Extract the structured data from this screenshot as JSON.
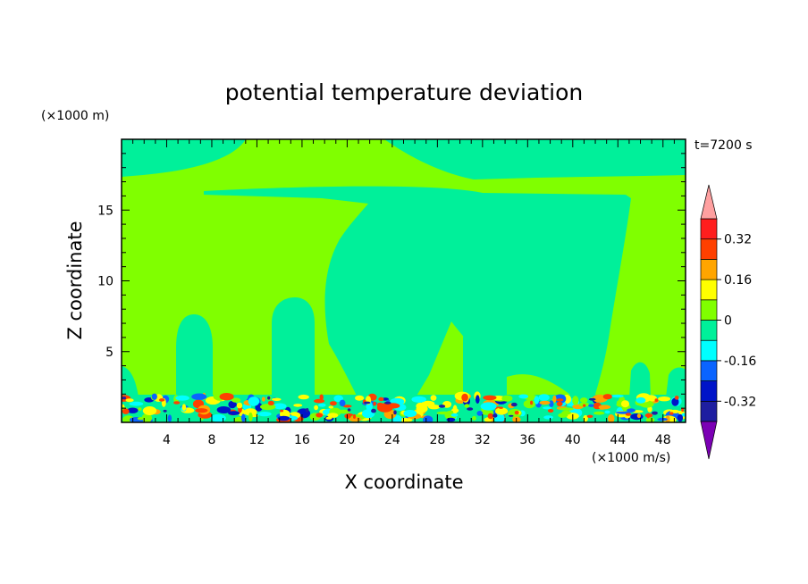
{
  "chart_data": {
    "type": "heatmap",
    "title": "potential temperature deviation",
    "xlabel": "X coordinate",
    "ylabel": "Z coordinate",
    "x_unit": "(×1000 m/s)",
    "y_unit": "(×1000 m)",
    "time_label": "t=7200 s",
    "xlim": [
      0,
      50
    ],
    "ylim": [
      0,
      20
    ],
    "x_ticks": [
      4,
      8,
      12,
      16,
      20,
      24,
      28,
      32,
      36,
      40,
      44,
      48
    ],
    "y_ticks": [
      5,
      10,
      15
    ],
    "colorbar": {
      "levels": [
        -0.4,
        -0.32,
        -0.24,
        -0.16,
        -0.08,
        0,
        0.08,
        0.16,
        0.24,
        0.32,
        0.4
      ],
      "colors": [
        "#7b00b4",
        "#1e1ea0",
        "#0014c8",
        "#0a64ff",
        "#00ffff",
        "#00f09a",
        "#80ff00",
        "#ffff00",
        "#ffa500",
        "#ff4000",
        "#ff1e1e",
        "#ffa0a0"
      ],
      "labels": [
        "0.32",
        "0.16",
        "0",
        "-0.16",
        "-0.32"
      ],
      "label_values": [
        0.32,
        0.16,
        0,
        -0.16,
        -0.32
      ]
    },
    "background_value": 0.04,
    "field_regions": [
      {
        "value": 0.0,
        "description": "upper band",
        "x": [
          0,
          50
        ],
        "z": [
          17.3,
          19.6
        ]
      },
      {
        "value": 0.0,
        "description": "central plume",
        "x": [
          19,
          42
        ],
        "z": [
          2,
          16
        ]
      },
      {
        "value": 0.0,
        "description": "thermal column",
        "x": [
          5,
          8
        ],
        "z": [
          2,
          7.5
        ]
      },
      {
        "value": 0.0,
        "description": "thermal column",
        "x": [
          13.5,
          17
        ],
        "z": [
          2,
          8.7
        ]
      },
      {
        "value": 0.0,
        "description": "thermal column",
        "x": [
          22.5,
          25.5
        ],
        "z": [
          2,
          5.8
        ]
      },
      {
        "value": 0.0,
        "description": "thermal column",
        "x": [
          30.5,
          34
        ],
        "z": [
          2,
          7.3
        ]
      },
      {
        "value": 0.0,
        "description": "surface layer",
        "x": [
          0,
          50
        ],
        "z": [
          0,
          2
        ]
      }
    ]
  }
}
